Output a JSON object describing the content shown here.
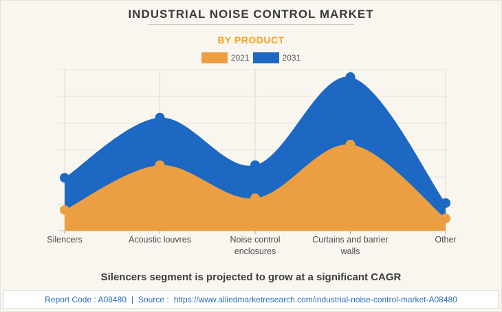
{
  "header": {
    "title": "INDUSTRIAL NOISE CONTROL MARKET",
    "subtitle": "BY PRODUCT"
  },
  "legend": [
    {
      "label": "2021",
      "color": "#EC9F42"
    },
    {
      "label": "2031",
      "color": "#1D68C2"
    }
  ],
  "chart_data": {
    "type": "area",
    "title": "INDUSTRIAL NOISE CONTROL MARKET",
    "subtitle": "BY PRODUCT",
    "categories": [
      "Silencers",
      "Acoustic louvres",
      "Noise control enclosures",
      "Curtains and barrier walls",
      "Other"
    ],
    "series": [
      {
        "name": "2021",
        "color": "#EC9F42",
        "values": [
          0.77,
          2.44,
          1.21,
          3.21,
          0.46
        ]
      },
      {
        "name": "2031",
        "color": "#1D68C2",
        "values": [
          1.97,
          4.21,
          2.44,
          5.72,
          1.03
        ]
      }
    ],
    "ylim": [
      0,
      6
    ],
    "grid": true,
    "legend_position": "top",
    "xlabel": "",
    "ylabel": ""
  },
  "caption": "Silencers segment is projected to grow at a significant CAGR",
  "footer": {
    "report_code": "Report Code : A08480",
    "separator": "|",
    "source_prefix": "Source :",
    "source_url": "https://www.alliedmarketresearch.com/industrial-noise-control-market-A08480"
  },
  "colors": {
    "background": "#F9F6EF",
    "accent_orange": "#F7A120",
    "series_2021": "#EC9F42",
    "series_2031": "#1D68C2",
    "footer_link": "#2B6CB8"
  }
}
